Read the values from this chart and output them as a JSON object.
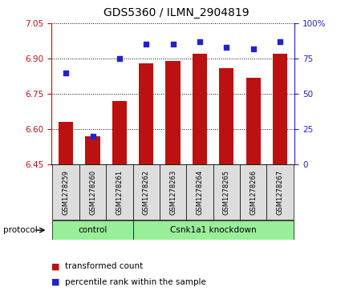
{
  "title": "GDS5360 / ILMN_2904819",
  "samples": [
    "GSM1278259",
    "GSM1278260",
    "GSM1278261",
    "GSM1278262",
    "GSM1278263",
    "GSM1278264",
    "GSM1278265",
    "GSM1278266",
    "GSM1278267"
  ],
  "transformed_count": [
    6.63,
    6.57,
    6.72,
    6.88,
    6.89,
    6.92,
    6.86,
    6.82,
    6.92
  ],
  "percentile_rank": [
    65,
    20,
    75,
    85,
    85,
    87,
    83,
    82,
    87
  ],
  "ylim_left": [
    6.45,
    7.05
  ],
  "ylim_right": [
    0,
    100
  ],
  "yticks_left": [
    6.45,
    6.6,
    6.75,
    6.9,
    7.05
  ],
  "yticks_right": [
    0,
    25,
    50,
    75,
    100
  ],
  "bar_color": "#bb1111",
  "scatter_color": "#2222cc",
  "control_group": [
    0,
    1,
    2
  ],
  "knockdown_group": [
    3,
    4,
    5,
    6,
    7,
    8
  ],
  "control_label": "control",
  "knockdown_label": "Csnk1a1 knockdown",
  "protocol_label": "protocol",
  "legend_bar": "transformed count",
  "legend_scatter": "percentile rank within the sample",
  "group_bg_color": "#99ee99",
  "xtick_bg_color": "#dddddd",
  "bar_bottom": 6.45
}
